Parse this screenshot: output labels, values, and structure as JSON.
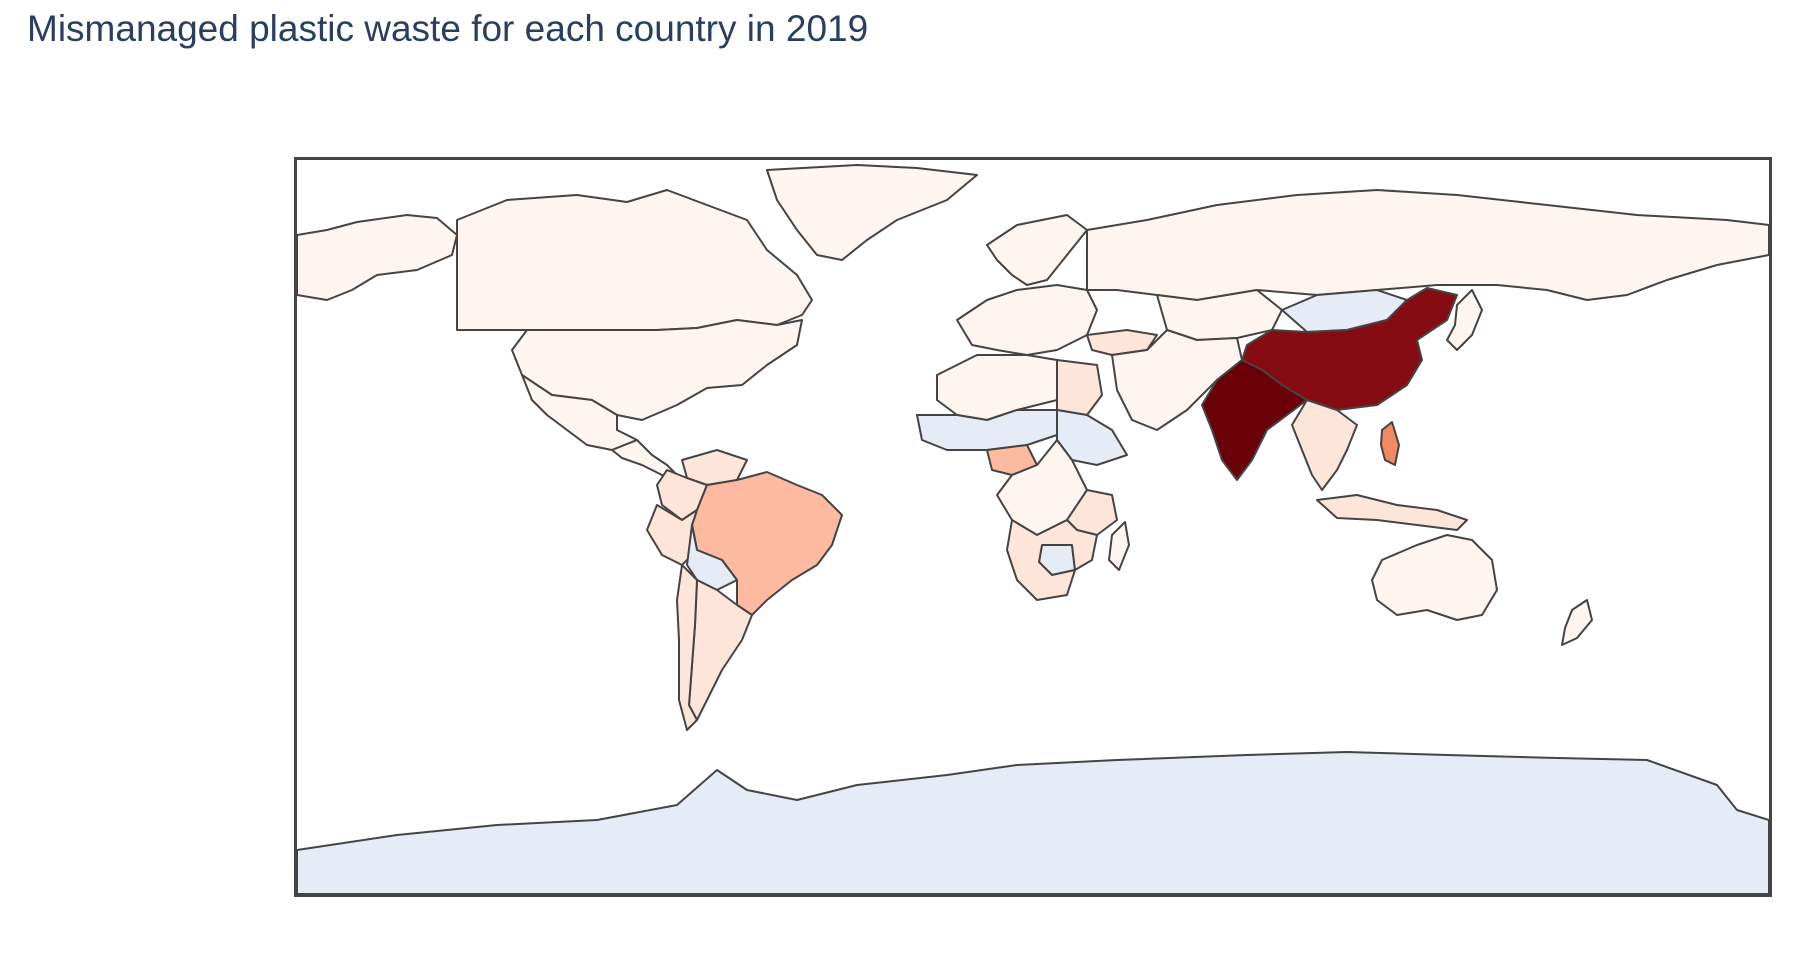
{
  "title": "Mismanaged plastic waste for each country in 2019",
  "map": {
    "projection": "equirectangular",
    "colorscale": "Reds",
    "missing_color": "#E5ECF6",
    "border_color": "#444444",
    "frame_color": "#444444"
  },
  "levels": {
    "none": "#E5ECF6",
    "very_low": "#FFF5F0",
    "low": "#FEE5D9",
    "medium": "#FCBBA1",
    "high": "#EF8A62",
    "very_high": "#850C12",
    "max": "#6A0008"
  },
  "regions": [
    {
      "name": "Canada",
      "level": "very_low"
    },
    {
      "name": "Alaska",
      "level": "very_low"
    },
    {
      "name": "Greenland",
      "level": "very_low"
    },
    {
      "name": "United States",
      "level": "very_low"
    },
    {
      "name": "Mexico",
      "level": "very_low"
    },
    {
      "name": "Central America",
      "level": "very_low"
    },
    {
      "name": "Colombia",
      "level": "low"
    },
    {
      "name": "Venezuela",
      "level": "low"
    },
    {
      "name": "Peru",
      "level": "low"
    },
    {
      "name": "Bolivia",
      "level": "none"
    },
    {
      "name": "Brazil",
      "level": "medium"
    },
    {
      "name": "Argentina",
      "level": "low"
    },
    {
      "name": "Chile",
      "level": "low"
    },
    {
      "name": "Western Europe",
      "level": "very_low"
    },
    {
      "name": "Scandinavia",
      "level": "very_low"
    },
    {
      "name": "Russia",
      "level": "very_low"
    },
    {
      "name": "Kazakhstan",
      "level": "very_low"
    },
    {
      "name": "Mongolia",
      "level": "none"
    },
    {
      "name": "China",
      "level": "very_high"
    },
    {
      "name": "India",
      "level": "max"
    },
    {
      "name": "Middle East",
      "level": "very_low"
    },
    {
      "name": "Turkey",
      "level": "low"
    },
    {
      "name": "North Africa",
      "level": "very_low"
    },
    {
      "name": "Egypt",
      "level": "low"
    },
    {
      "name": "Sahel",
      "level": "none"
    },
    {
      "name": "Nigeria",
      "level": "medium"
    },
    {
      "name": "Ethiopia",
      "level": "none"
    },
    {
      "name": "Central Africa",
      "level": "very_low"
    },
    {
      "name": "Tanzania",
      "level": "low"
    },
    {
      "name": "Southern Africa",
      "level": "low"
    },
    {
      "name": "Botswana",
      "level": "none"
    },
    {
      "name": "Madagascar",
      "level": "very_low"
    },
    {
      "name": "Southeast Asia",
      "level": "low"
    },
    {
      "name": "Philippines",
      "level": "high"
    },
    {
      "name": "Indonesia",
      "level": "low"
    },
    {
      "name": "Japan",
      "level": "very_low"
    },
    {
      "name": "Australia",
      "level": "very_low"
    },
    {
      "name": "New Zealand",
      "level": "very_low"
    },
    {
      "name": "Antarctica",
      "level": "none"
    }
  ]
}
